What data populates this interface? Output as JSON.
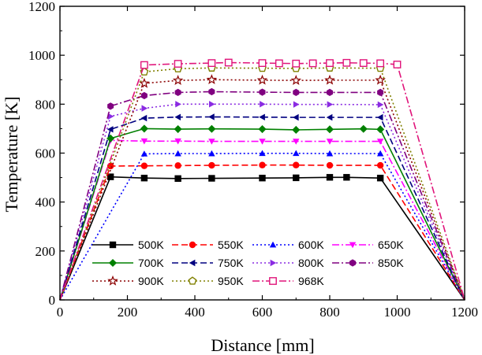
{
  "chart_data": {
    "type": "line",
    "xlabel": "Distance [mm]",
    "ylabel": "Temperature [K]",
    "xlim": [
      0,
      1200
    ],
    "ylim": [
      0,
      1200
    ],
    "xticks": [
      0,
      200,
      400,
      600,
      800,
      1000,
      1200
    ],
    "yticks": [
      0,
      200,
      400,
      600,
      800,
      1000,
      1200
    ],
    "grid": false,
    "legend_position": "bottom-left",
    "series": [
      {
        "name": "500K",
        "color": "#000000",
        "dash": "solid",
        "marker": "square",
        "x": [
          0,
          150,
          250,
          350,
          450,
          600,
          700,
          800,
          850,
          950,
          1200
        ],
        "y": [
          0,
          503,
          498,
          496,
          497,
          498,
          499,
          501,
          501,
          498,
          0
        ]
      },
      {
        "name": "550K",
        "color": "#ff0000",
        "dash": "dashed",
        "marker": "circle",
        "x": [
          0,
          150,
          250,
          350,
          450,
          600,
          700,
          800,
          950,
          1200
        ],
        "y": [
          0,
          547,
          548,
          549,
          550,
          551,
          551,
          550,
          550,
          0
        ]
      },
      {
        "name": "600K",
        "color": "#0000ff",
        "dash": "dotted",
        "marker": "triangle-up",
        "x": [
          0,
          250,
          350,
          450,
          600,
          700,
          800,
          950,
          1200
        ],
        "y": [
          0,
          597,
          598,
          598,
          599,
          599,
          598,
          598,
          0
        ]
      },
      {
        "name": "650K",
        "color": "#ff00ff",
        "dash": "dashdot",
        "marker": "triangle-down",
        "x": [
          0,
          150,
          250,
          350,
          450,
          600,
          700,
          800,
          950,
          1200
        ],
        "y": [
          0,
          652,
          649,
          649,
          648,
          648,
          648,
          648,
          648,
          0
        ]
      },
      {
        "name": "700K",
        "color": "#008000",
        "dash": "solid",
        "marker": "diamond",
        "x": [
          0,
          150,
          250,
          350,
          450,
          600,
          700,
          800,
          900,
          950,
          1200
        ],
        "y": [
          0,
          660,
          700,
          698,
          699,
          698,
          695,
          697,
          699,
          697,
          0
        ]
      },
      {
        "name": "750K",
        "color": "#000080",
        "dash": "dashed",
        "marker": "triangle-left",
        "x": [
          0,
          150,
          250,
          350,
          450,
          600,
          700,
          800,
          950,
          1200
        ],
        "y": [
          0,
          697,
          743,
          747,
          748,
          747,
          746,
          746,
          746,
          0
        ]
      },
      {
        "name": "800K",
        "color": "#8a2be2",
        "dash": "dotted",
        "marker": "triangle-right",
        "x": [
          0,
          150,
          250,
          350,
          450,
          600,
          700,
          800,
          950,
          1200
        ],
        "y": [
          0,
          750,
          783,
          800,
          800,
          800,
          799,
          799,
          798,
          0
        ]
      },
      {
        "name": "850K",
        "color": "#800080",
        "dash": "dashdot",
        "marker": "hexagon",
        "x": [
          0,
          150,
          250,
          350,
          450,
          600,
          700,
          800,
          950,
          1200
        ],
        "y": [
          0,
          792,
          835,
          848,
          851,
          849,
          848,
          848,
          848,
          0
        ]
      },
      {
        "name": "900K",
        "color": "#8b0000",
        "dash": "dotted",
        "marker": "star",
        "x": [
          0,
          250,
          350,
          450,
          600,
          700,
          800,
          950,
          1200
        ],
        "y": [
          0,
          885,
          897,
          900,
          898,
          897,
          898,
          898,
          0
        ]
      },
      {
        "name": "950K",
        "color": "#808000",
        "dash": "dotted",
        "marker": "pentagon",
        "x": [
          0,
          250,
          350,
          450,
          600,
          700,
          800,
          950,
          1200
        ],
        "y": [
          0,
          932,
          945,
          948,
          947,
          946,
          948,
          947,
          0
        ]
      },
      {
        "name": "968K",
        "color": "#e0147a",
        "dash": "dashdot",
        "marker": "square-open",
        "x": [
          0,
          250,
          350,
          450,
          500,
          600,
          650,
          700,
          750,
          800,
          850,
          900,
          950,
          1000,
          1200
        ],
        "y": [
          0,
          960,
          965,
          968,
          970,
          968,
          967,
          966,
          967,
          968,
          969,
          968,
          967,
          962,
          0
        ]
      }
    ]
  }
}
